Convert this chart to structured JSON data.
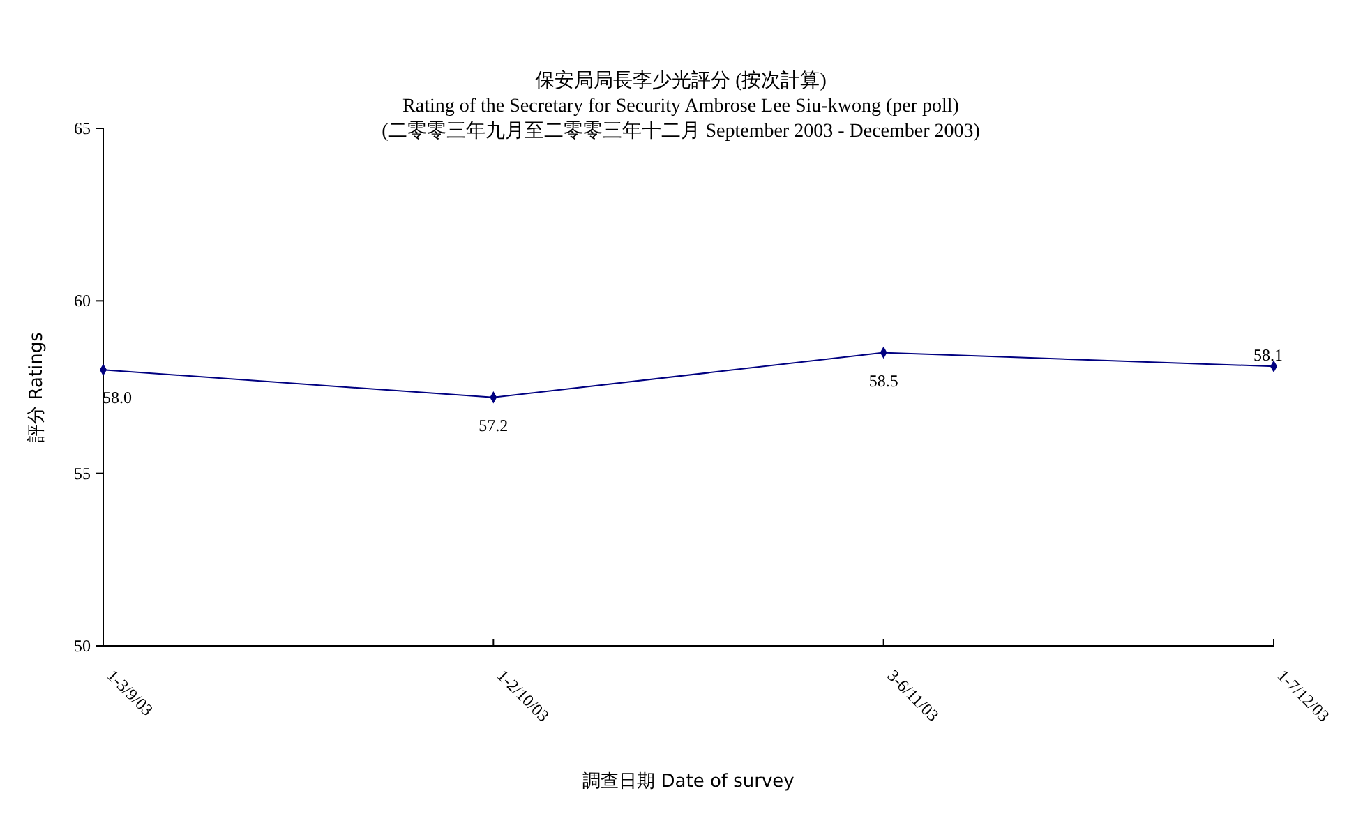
{
  "chart_data": {
    "type": "line",
    "title": "保安局局長李少光評分 (按次計算)",
    "subtitle": "Rating of the Secretary for Security Ambrose Lee Siu-kwong  (per poll)\n(二零零三年九月至二零零三年十二月  September 2003 - December 2003)",
    "xlabel": "調查日期 Date of survey",
    "ylabel": "評分 Ratings",
    "categories": [
      "1-3/9/03",
      "1-2/10/03",
      "3-6/11/03",
      "1-7/12/03"
    ],
    "series": [
      {
        "color": "#000080",
        "values": [
          58.0,
          57.2,
          58.5,
          58.1
        ],
        "value_labels": [
          "58.0",
          "57.2",
          "58.5",
          "58.1"
        ]
      }
    ],
    "ylim": [
      50,
      65
    ],
    "yticks": [
      50,
      55,
      60,
      65
    ],
    "grid": false,
    "marker": "diamond",
    "line_style": "solid"
  }
}
